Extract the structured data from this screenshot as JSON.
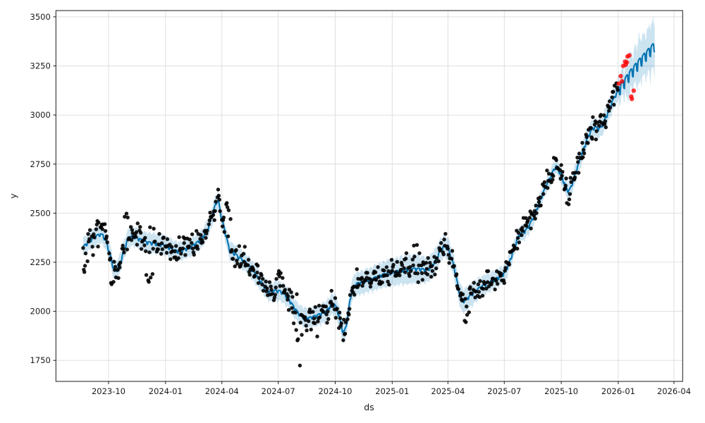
{
  "chart_data": {
    "type": "line",
    "subtype": "time-series forecast with scatter actuals, confidence band and anomaly points",
    "title": "",
    "xlabel": "ds",
    "ylabel": "y",
    "grid": true,
    "legend_position": "none",
    "xlim": [
      "2023-07-08",
      "2026-04-15"
    ],
    "ylim": [
      1643,
      3532
    ],
    "x_ticks": [
      {
        "date": "2023-10-01",
        "label": "2023-10"
      },
      {
        "date": "2024-01-01",
        "label": "2024-01"
      },
      {
        "date": "2024-04-01",
        "label": "2024-04"
      },
      {
        "date": "2024-07-01",
        "label": "2024-07"
      },
      {
        "date": "2024-10-01",
        "label": "2024-10"
      },
      {
        "date": "2025-01-01",
        "label": "2025-01"
      },
      {
        "date": "2025-04-01",
        "label": "2025-04"
      },
      {
        "date": "2025-07-01",
        "label": "2025-07"
      },
      {
        "date": "2025-10-01",
        "label": "2025-10"
      },
      {
        "date": "2026-01-01",
        "label": "2026-01"
      },
      {
        "date": "2026-04-01",
        "label": "2026-04"
      }
    ],
    "y_ticks": [
      1750,
      2000,
      2250,
      2500,
      2750,
      3000,
      3250,
      3500
    ],
    "colors": {
      "forecast_line": "#0072b2",
      "band_fill": "#0072b2",
      "band_opacity": 0.2,
      "actual_point": "#000000",
      "anomaly_point": "#ff0000",
      "grid_line": "#dcdcdc",
      "spine": "#1a1a1a",
      "tick_text": "#1a1a1a"
    },
    "marker": {
      "actual_radius": 2.7,
      "actual_opacity": 0.9,
      "anomaly_radius": 3.2,
      "anomaly_opacity": 0.78,
      "line_width": 2
    },
    "history_start": "2023-08-21",
    "history_end": "2025-12-31",
    "forecast_end": "2026-03-01",
    "weekly_effect_sun_first": [
      -28,
      18,
      22,
      24,
      24,
      20,
      -20
    ],
    "weekly_effect_history_scale": 0.28,
    "actuals_noise": {
      "sd": 32,
      "seed": 20,
      "frequency": "weekdays"
    },
    "trend_anchors": [
      [
        "2023-08-21",
        2325
      ],
      [
        "2023-09-01",
        2358
      ],
      [
        "2023-09-10",
        2378
      ],
      [
        "2023-09-17",
        2390
      ],
      [
        "2023-09-22",
        2385
      ],
      [
        "2023-09-28",
        2345
      ],
      [
        "2023-10-04",
        2280
      ],
      [
        "2023-10-09",
        2215
      ],
      [
        "2023-10-12",
        2203
      ],
      [
        "2023-10-16",
        2215
      ],
      [
        "2023-10-21",
        2255
      ],
      [
        "2023-10-26",
        2310
      ],
      [
        "2023-10-31",
        2355
      ],
      [
        "2023-11-05",
        2376
      ],
      [
        "2023-11-10",
        2380
      ],
      [
        "2023-11-20",
        2365
      ],
      [
        "2023-12-01",
        2350
      ],
      [
        "2023-12-10",
        2345
      ],
      [
        "2023-12-20",
        2340
      ],
      [
        "2024-01-01",
        2333
      ],
      [
        "2024-01-08",
        2320
      ],
      [
        "2024-01-15",
        2308
      ],
      [
        "2024-01-22",
        2303
      ],
      [
        "2024-01-28",
        2308
      ],
      [
        "2024-02-05",
        2318
      ],
      [
        "2024-02-13",
        2330
      ],
      [
        "2024-02-20",
        2345
      ],
      [
        "2024-02-27",
        2362
      ],
      [
        "2024-03-05",
        2395
      ],
      [
        "2024-03-11",
        2430
      ],
      [
        "2024-03-16",
        2480
      ],
      [
        "2024-03-20",
        2525
      ],
      [
        "2024-03-24",
        2560
      ],
      [
        "2024-03-27",
        2550
      ],
      [
        "2024-03-31",
        2480
      ],
      [
        "2024-04-04",
        2430
      ],
      [
        "2024-04-07",
        2390
      ],
      [
        "2024-04-11",
        2340
      ],
      [
        "2024-04-14",
        2305
      ],
      [
        "2024-04-18",
        2300
      ],
      [
        "2024-04-24",
        2285
      ],
      [
        "2024-04-30",
        2268
      ],
      [
        "2024-05-06",
        2255
      ],
      [
        "2024-05-12",
        2240
      ],
      [
        "2024-05-18",
        2215
      ],
      [
        "2024-05-24",
        2190
      ],
      [
        "2024-05-30",
        2165
      ],
      [
        "2024-06-05",
        2140
      ],
      [
        "2024-06-11",
        2115
      ],
      [
        "2024-06-16",
        2098
      ],
      [
        "2024-06-21",
        2096
      ],
      [
        "2024-06-27",
        2103
      ],
      [
        "2024-07-03",
        2100
      ],
      [
        "2024-07-09",
        2092
      ],
      [
        "2024-07-15",
        2072
      ],
      [
        "2024-07-21",
        2045
      ],
      [
        "2024-07-27",
        2015
      ],
      [
        "2024-08-02",
        1990
      ],
      [
        "2024-08-08",
        1972
      ],
      [
        "2024-08-14",
        1963
      ],
      [
        "2024-08-20",
        1963
      ],
      [
        "2024-08-27",
        1970
      ],
      [
        "2024-09-03",
        1978
      ],
      [
        "2024-09-10",
        1988
      ],
      [
        "2024-09-17",
        1998
      ],
      [
        "2024-09-22",
        2020
      ],
      [
        "2024-09-26",
        2033
      ],
      [
        "2024-09-30",
        2030
      ],
      [
        "2024-10-03",
        2015
      ],
      [
        "2024-10-07",
        1975
      ],
      [
        "2024-10-10",
        1935
      ],
      [
        "2024-10-13",
        1900
      ],
      [
        "2024-10-15",
        1890
      ],
      [
        "2024-10-18",
        1915
      ],
      [
        "2024-10-21",
        1965
      ],
      [
        "2024-10-24",
        2035
      ],
      [
        "2024-10-27",
        2090
      ],
      [
        "2024-10-31",
        2125
      ],
      [
        "2024-11-06",
        2140
      ],
      [
        "2024-11-14",
        2145
      ],
      [
        "2024-11-22",
        2155
      ],
      [
        "2024-11-30",
        2163
      ],
      [
        "2024-12-08",
        2173
      ],
      [
        "2024-12-16",
        2183
      ],
      [
        "2024-12-24",
        2190
      ],
      [
        "2025-01-01",
        2196
      ],
      [
        "2025-01-10",
        2202
      ],
      [
        "2025-01-19",
        2207
      ],
      [
        "2025-01-28",
        2211
      ],
      [
        "2025-02-06",
        2214
      ],
      [
        "2025-02-14",
        2212
      ],
      [
        "2025-02-22",
        2210
      ],
      [
        "2025-03-01",
        2214
      ],
      [
        "2025-03-06",
        2228
      ],
      [
        "2025-03-12",
        2258
      ],
      [
        "2025-03-17",
        2290
      ],
      [
        "2025-03-22",
        2318
      ],
      [
        "2025-03-26",
        2330
      ],
      [
        "2025-03-30",
        2322
      ],
      [
        "2025-04-03",
        2300
      ],
      [
        "2025-04-07",
        2268
      ],
      [
        "2025-04-11",
        2220
      ],
      [
        "2025-04-15",
        2160
      ],
      [
        "2025-04-19",
        2100
      ],
      [
        "2025-04-23",
        2062
      ],
      [
        "2025-04-26",
        2050
      ],
      [
        "2025-04-30",
        2058
      ],
      [
        "2025-05-06",
        2074
      ],
      [
        "2025-05-13",
        2094
      ],
      [
        "2025-05-20",
        2112
      ],
      [
        "2025-05-27",
        2127
      ],
      [
        "2025-06-03",
        2140
      ],
      [
        "2025-06-10",
        2152
      ],
      [
        "2025-06-17",
        2163
      ],
      [
        "2025-06-24",
        2174
      ],
      [
        "2025-06-30",
        2188
      ],
      [
        "2025-07-04",
        2210
      ],
      [
        "2025-07-09",
        2245
      ],
      [
        "2025-07-14",
        2290
      ],
      [
        "2025-07-18",
        2330
      ],
      [
        "2025-07-22",
        2365
      ],
      [
        "2025-07-26",
        2388
      ],
      [
        "2025-07-30",
        2398
      ],
      [
        "2025-08-03",
        2405
      ],
      [
        "2025-08-07",
        2418
      ],
      [
        "2025-08-12",
        2445
      ],
      [
        "2025-08-17",
        2478
      ],
      [
        "2025-08-22",
        2515
      ],
      [
        "2025-08-27",
        2555
      ],
      [
        "2025-09-01",
        2595
      ],
      [
        "2025-09-06",
        2632
      ],
      [
        "2025-09-11",
        2665
      ],
      [
        "2025-09-16",
        2700
      ],
      [
        "2025-09-20",
        2725
      ],
      [
        "2025-09-23",
        2736
      ],
      [
        "2025-09-26",
        2722
      ],
      [
        "2025-09-30",
        2695
      ],
      [
        "2025-10-04",
        2665
      ],
      [
        "2025-10-08",
        2635
      ],
      [
        "2025-10-11",
        2615
      ],
      [
        "2025-10-13",
        2610
      ],
      [
        "2025-10-16",
        2625
      ],
      [
        "2025-10-20",
        2662
      ],
      [
        "2025-10-24",
        2700
      ],
      [
        "2025-10-28",
        2740
      ],
      [
        "2025-11-01",
        2778
      ],
      [
        "2025-11-05",
        2815
      ],
      [
        "2025-11-09",
        2850
      ],
      [
        "2025-11-13",
        2885
      ],
      [
        "2025-11-17",
        2910
      ],
      [
        "2025-11-21",
        2928
      ],
      [
        "2025-11-25",
        2935
      ],
      [
        "2025-11-29",
        2928
      ],
      [
        "2025-12-03",
        2930
      ],
      [
        "2025-12-07",
        2950
      ],
      [
        "2025-12-11",
        2980
      ],
      [
        "2025-12-15",
        3005
      ],
      [
        "2025-12-19",
        3040
      ],
      [
        "2025-12-23",
        3070
      ],
      [
        "2025-12-27",
        3095
      ],
      [
        "2025-12-31",
        3115
      ],
      [
        "2026-01-05",
        3135
      ],
      [
        "2026-01-10",
        3158
      ],
      [
        "2026-01-15",
        3180
      ],
      [
        "2026-01-20",
        3203
      ],
      [
        "2026-01-25",
        3222
      ],
      [
        "2026-01-30",
        3243
      ],
      [
        "2026-02-04",
        3262
      ],
      [
        "2026-02-09",
        3280
      ],
      [
        "2026-02-14",
        3298
      ],
      [
        "2026-02-19",
        3315
      ],
      [
        "2026-02-24",
        3332
      ],
      [
        "2026-03-01",
        3348
      ]
    ],
    "band_halfwidth_anchors": [
      [
        "2023-08-21",
        45
      ],
      [
        "2023-12-01",
        50
      ],
      [
        "2024-03-24",
        45
      ],
      [
        "2024-06-15",
        48
      ],
      [
        "2024-08-15",
        50
      ],
      [
        "2024-10-15",
        56
      ],
      [
        "2024-12-01",
        62
      ],
      [
        "2025-02-01",
        75
      ],
      [
        "2025-03-26",
        55
      ],
      [
        "2025-04-26",
        62
      ],
      [
        "2025-06-01",
        50
      ],
      [
        "2025-07-22",
        40
      ],
      [
        "2025-09-23",
        38
      ],
      [
        "2025-10-13",
        48
      ],
      [
        "2025-11-15",
        45
      ],
      [
        "2025-12-15",
        50
      ],
      [
        "2025-12-31",
        55
      ],
      [
        "2026-01-15",
        80
      ],
      [
        "2026-02-01",
        95
      ],
      [
        "2026-02-15",
        108
      ],
      [
        "2026-03-01",
        120
      ]
    ],
    "actual_outliers": [
      [
        "2023-08-22",
        2212
      ],
      [
        "2023-08-23",
        2200
      ],
      [
        "2023-08-24",
        2232
      ],
      [
        "2023-08-28",
        2255
      ],
      [
        "2023-09-12",
        2442
      ],
      [
        "2023-09-13",
        2460
      ],
      [
        "2023-09-15",
        2452
      ],
      [
        "2023-10-05",
        2145
      ],
      [
        "2023-10-06",
        2138
      ],
      [
        "2023-10-09",
        2150
      ],
      [
        "2023-10-27",
        2482
      ],
      [
        "2023-10-30",
        2498
      ],
      [
        "2023-11-01",
        2478
      ],
      [
        "2023-11-17",
        2448
      ],
      [
        "2023-11-21",
        2430
      ],
      [
        "2023-12-01",
        2185
      ],
      [
        "2023-12-04",
        2158
      ],
      [
        "2023-12-05",
        2150
      ],
      [
        "2023-12-08",
        2172
      ],
      [
        "2023-12-11",
        2190
      ],
      [
        "2024-04-08",
        2545
      ],
      [
        "2024-04-09",
        2552
      ],
      [
        "2024-04-10",
        2530
      ],
      [
        "2024-04-12",
        2515
      ],
      [
        "2024-04-15",
        2470
      ],
      [
        "2024-06-28",
        2165
      ],
      [
        "2024-07-01",
        2190
      ],
      [
        "2024-07-02",
        2205
      ],
      [
        "2024-07-03",
        2178
      ],
      [
        "2024-07-05",
        2195
      ],
      [
        "2024-07-08",
        2170
      ],
      [
        "2024-07-30",
        1905
      ],
      [
        "2024-08-01",
        1852
      ],
      [
        "2024-08-02",
        1858
      ],
      [
        "2024-08-05",
        1724
      ],
      [
        "2024-08-08",
        1880
      ],
      [
        "2024-09-02",
        1872
      ],
      [
        "2025-02-05",
        2335
      ],
      [
        "2025-02-10",
        2338
      ],
      [
        "2025-04-28",
        1952
      ],
      [
        "2025-04-30",
        1945
      ],
      [
        "2025-05-02",
        1982
      ],
      [
        "2025-05-05",
        1995
      ],
      [
        "2025-09-19",
        2782
      ],
      [
        "2025-09-22",
        2778
      ],
      [
        "2025-09-23",
        2770
      ],
      [
        "2025-10-10",
        2552
      ],
      [
        "2025-10-13",
        2545
      ],
      [
        "2025-10-14",
        2570
      ],
      [
        "2025-12-26",
        3150
      ],
      [
        "2025-12-29",
        3162
      ],
      [
        "2025-12-30",
        3140
      ],
      [
        "2025-12-31",
        3128
      ]
    ],
    "anomalies": [
      [
        "2026-01-02",
        3160
      ],
      [
        "2026-01-05",
        3198
      ],
      [
        "2026-01-07",
        3172
      ],
      [
        "2026-01-09",
        3250
      ],
      [
        "2026-01-12",
        3272
      ],
      [
        "2026-01-13",
        3256
      ],
      [
        "2026-01-15",
        3268
      ],
      [
        "2026-01-16",
        3298
      ],
      [
        "2026-01-19",
        3304
      ],
      [
        "2026-01-22",
        3094
      ],
      [
        "2026-01-23",
        3082
      ],
      [
        "2026-01-26",
        3124
      ]
    ]
  }
}
